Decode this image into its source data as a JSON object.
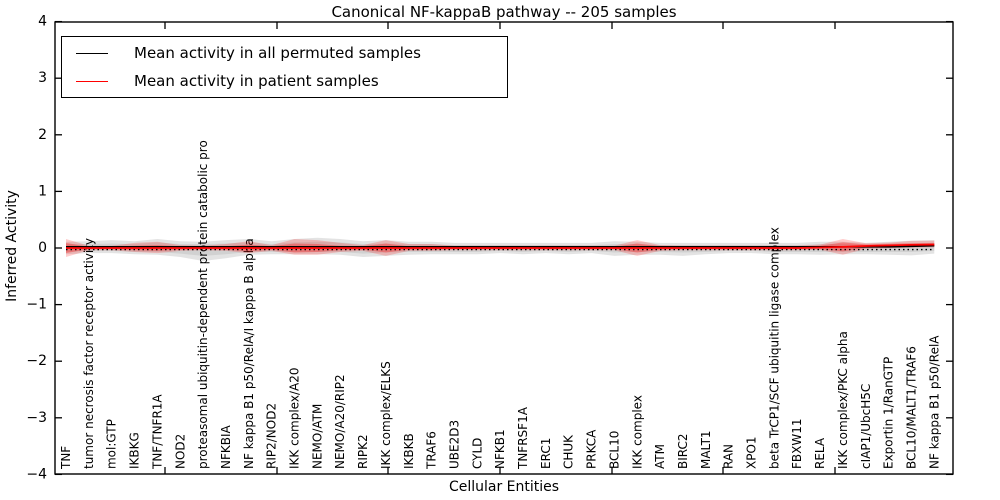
{
  "header": {
    "title": "Canonical NF-kappaB pathway -- 205 samples"
  },
  "axes": {
    "xlabel": "Cellular Entities",
    "ylabel": "Inferred Activity"
  },
  "legend": {
    "entries": [
      {
        "label": "Mean activity in all permuted samples",
        "color": "#000000"
      },
      {
        "label": "Mean activity in patient samples",
        "color": "#ff0000"
      }
    ]
  },
  "chart_data": {
    "type": "area",
    "title": "Canonical NF-kappaB pathway -- 205 samples",
    "xlabel": "Cellular Entities",
    "ylabel": "Inferred Activity",
    "ylim": [
      -4,
      4
    ],
    "grid": false,
    "legend_position": "upper left",
    "yticks": [
      {
        "value": 4,
        "label": "4"
      },
      {
        "value": 3,
        "label": "3"
      },
      {
        "value": 2,
        "label": "2"
      },
      {
        "value": 1,
        "label": "1"
      },
      {
        "value": 0,
        "label": "0"
      },
      {
        "value": -1,
        "label": "−1"
      },
      {
        "value": -2,
        "label": "−2"
      },
      {
        "value": -3,
        "label": "−3"
      },
      {
        "value": -4,
        "label": "−4"
      }
    ],
    "categories": [
      "TNF",
      "tumor necrosis factor receptor activity",
      "mol:GTP",
      "IKBKG",
      "TNF/TNFR1A",
      "NOD2",
      "proteasomal ubiquitin-dependent protein catabolic pro",
      "NFKBIA",
      "NF kappa B1 p50/RelA/I kappa B alpha",
      "RIP2/NOD2",
      "IKK complex/A20",
      "NEMO/ATM",
      "NEMO/A20/RIP2",
      "RIPK2",
      "IKK complex/ELKS",
      "IKBKB",
      "TRAF6",
      "UBE2D3",
      "CYLD",
      "NFKB1",
      "TNFRSF1A",
      "ERC1",
      "CHUK",
      "PRKCA",
      "BCL10",
      "IKK complex",
      "ATM",
      "BIRC2",
      "MALT1",
      "RAN",
      "XPO1",
      "beta TrCP1/SCF ubiquitin ligase complex",
      "FBXW11",
      "RELA",
      "IKK complex/PKC alpha",
      "cIAP1/UbcH5C",
      "Exportin 1/RanGTP",
      "BCL10/MALT1/TRAF6",
      "NF kappa B1 p50/RelA"
    ],
    "bands": [
      {
        "name": "permuted-sample-band-outer",
        "color": "rgba(0,0,0,0.11)",
        "mean": [
          0,
          0,
          0,
          0,
          0,
          0,
          0,
          0,
          0,
          0,
          0,
          0,
          0,
          0,
          0,
          0,
          0,
          0,
          0,
          0,
          0,
          0,
          0,
          0,
          0,
          0,
          0,
          0,
          0,
          0,
          0,
          0,
          0,
          0,
          0,
          0,
          0,
          0.01,
          0.02
        ],
        "above": [
          0.11,
          0.12,
          0.14,
          0.12,
          0.16,
          0.12,
          0.11,
          0.14,
          0.16,
          0.12,
          0.16,
          0.18,
          0.16,
          0.12,
          0.14,
          0.11,
          0.11,
          0.09,
          0.09,
          0.09,
          0.09,
          0.09,
          0.09,
          0.09,
          0.12,
          0.11,
          0.09,
          0.09,
          0.09,
          0.09,
          0.09,
          0.09,
          0.09,
          0.11,
          0.11,
          0.09,
          0.11,
          0.12,
          0.12
        ],
        "below": [
          0.11,
          0.09,
          0.09,
          0.11,
          0.12,
          0.16,
          0.23,
          0.18,
          0.12,
          0.11,
          0.11,
          0.11,
          0.12,
          0.16,
          0.14,
          0.12,
          0.11,
          0.11,
          0.11,
          0.09,
          0.11,
          0.09,
          0.11,
          0.09,
          0.14,
          0.12,
          0.12,
          0.14,
          0.11,
          0.09,
          0.09,
          0.11,
          0.11,
          0.12,
          0.11,
          0.11,
          0.12,
          0.14,
          0.12
        ]
      },
      {
        "name": "permuted-sample-band-inner",
        "color": "rgba(0,0,0,0.08)",
        "mean": [
          0,
          0,
          0,
          0,
          0,
          0,
          0,
          0,
          0,
          0,
          0,
          0,
          0,
          0,
          0,
          0,
          0,
          0,
          0,
          0,
          0,
          0,
          0,
          0,
          0,
          0,
          0,
          0,
          0,
          0,
          0,
          0,
          0,
          0,
          0,
          0,
          0,
          0.01,
          0.02
        ],
        "above": [
          0.07,
          0.07,
          0.08,
          0.07,
          0.1,
          0.07,
          0.07,
          0.08,
          0.1,
          0.07,
          0.1,
          0.11,
          0.1,
          0.07,
          0.08,
          0.07,
          0.07,
          0.05,
          0.05,
          0.05,
          0.05,
          0.05,
          0.05,
          0.05,
          0.07,
          0.07,
          0.05,
          0.05,
          0.05,
          0.05,
          0.05,
          0.05,
          0.05,
          0.07,
          0.07,
          0.05,
          0.07,
          0.07,
          0.07
        ],
        "below": [
          0.07,
          0.05,
          0.05,
          0.07,
          0.07,
          0.1,
          0.14,
          0.11,
          0.07,
          0.07,
          0.07,
          0.07,
          0.07,
          0.1,
          0.08,
          0.07,
          0.07,
          0.07,
          0.07,
          0.05,
          0.07,
          0.05,
          0.07,
          0.05,
          0.08,
          0.07,
          0.07,
          0.08,
          0.07,
          0.05,
          0.05,
          0.07,
          0.07,
          0.07,
          0.07,
          0.07,
          0.07,
          0.08,
          0.07
        ]
      },
      {
        "name": "patient-sample-band-outer",
        "color": "rgba(255,0,0,0.20)",
        "mean": [
          0,
          0,
          0,
          0,
          0,
          0,
          0,
          0,
          0,
          0,
          0,
          0,
          0,
          0,
          0,
          0,
          0,
          0,
          0,
          0,
          0,
          0,
          0,
          0,
          0,
          0,
          0,
          0,
          0,
          0,
          0,
          0,
          0,
          0.01,
          0.02,
          0.035,
          0.045,
          0.055,
          0.06
        ],
        "above": [
          0.16,
          0.04,
          0.04,
          0.09,
          0.11,
          0.05,
          0.04,
          0.07,
          0.12,
          0.05,
          0.16,
          0.14,
          0.09,
          0.05,
          0.14,
          0.07,
          0.07,
          0.04,
          0.04,
          0.04,
          0.04,
          0.04,
          0.04,
          0.04,
          0.04,
          0.14,
          0.05,
          0.04,
          0.04,
          0.04,
          0.04,
          0.04,
          0.04,
          0.05,
          0.14,
          0.05,
          0.05,
          0.07,
          0.07
        ],
        "below": [
          0.16,
          0.04,
          0.04,
          0.07,
          0.09,
          0.05,
          0.04,
          0.05,
          0.09,
          0.05,
          0.12,
          0.12,
          0.07,
          0.05,
          0.14,
          0.05,
          0.05,
          0.04,
          0.04,
          0.04,
          0.04,
          0.04,
          0.04,
          0.04,
          0.04,
          0.14,
          0.05,
          0.04,
          0.04,
          0.04,
          0.04,
          0.04,
          0.04,
          0.04,
          0.14,
          0.05,
          0.05,
          0.05,
          0.05
        ]
      },
      {
        "name": "patient-sample-band-inner",
        "color": "rgba(255,0,0,0.30)",
        "mean": [
          0,
          0,
          0,
          0,
          0,
          0,
          0,
          0,
          0,
          0,
          0,
          0,
          0,
          0,
          0,
          0,
          0,
          0,
          0,
          0,
          0,
          0,
          0,
          0,
          0,
          0,
          0,
          0,
          0,
          0,
          0,
          0,
          0,
          0.01,
          0.02,
          0.035,
          0.045,
          0.055,
          0.06
        ],
        "above": [
          0.09,
          0.02,
          0.02,
          0.04,
          0.05,
          0.03,
          0.02,
          0.03,
          0.06,
          0.03,
          0.08,
          0.07,
          0.04,
          0.03,
          0.08,
          0.03,
          0.03,
          0.02,
          0.02,
          0.02,
          0.02,
          0.02,
          0.02,
          0.02,
          0.02,
          0.08,
          0.03,
          0.02,
          0.02,
          0.02,
          0.02,
          0.02,
          0.02,
          0.03,
          0.08,
          0.03,
          0.03,
          0.03,
          0.03
        ],
        "below": [
          0.09,
          0.02,
          0.02,
          0.04,
          0.05,
          0.03,
          0.02,
          0.03,
          0.06,
          0.03,
          0.08,
          0.07,
          0.04,
          0.03,
          0.08,
          0.03,
          0.03,
          0.02,
          0.02,
          0.02,
          0.02,
          0.02,
          0.02,
          0.02,
          0.02,
          0.08,
          0.03,
          0.02,
          0.02,
          0.02,
          0.02,
          0.02,
          0.02,
          0.03,
          0.08,
          0.03,
          0.03,
          0.03,
          0.03
        ]
      }
    ],
    "lines": [
      {
        "name": "zero-reference-line",
        "color": "#000000",
        "style": "dotted",
        "values": [
          0,
          0,
          0,
          0,
          0,
          0,
          0,
          0,
          0,
          0,
          0,
          0,
          0,
          0,
          0,
          0,
          0,
          0,
          0,
          0,
          0,
          0,
          0,
          0,
          0,
          0,
          0,
          0,
          0,
          0,
          0,
          0,
          0,
          0,
          0,
          0,
          0,
          0,
          0
        ]
      },
      {
        "name": "permuted-mean-line",
        "color": "#000000",
        "style": "solid",
        "values": [
          0,
          0,
          0,
          0,
          0,
          0,
          0,
          0,
          0,
          0,
          0,
          0,
          0,
          0,
          0,
          0,
          0,
          0,
          0,
          0,
          0,
          0,
          0,
          0,
          0,
          0,
          0,
          0,
          0,
          0,
          0,
          0,
          0,
          0,
          0,
          0,
          0,
          0.01,
          0.02
        ]
      },
      {
        "name": "patient-mean-line",
        "color": "#ff0000",
        "style": "solid",
        "values": [
          0,
          0,
          0,
          0,
          0,
          0,
          0,
          0,
          0,
          0,
          0,
          0,
          0,
          0,
          0,
          0,
          0,
          0,
          0,
          0,
          0,
          0,
          0,
          0,
          0,
          0,
          0,
          0,
          0,
          0,
          0,
          0,
          0,
          0.01,
          0.02,
          0.035,
          0.045,
          0.055,
          0.06
        ]
      }
    ]
  }
}
